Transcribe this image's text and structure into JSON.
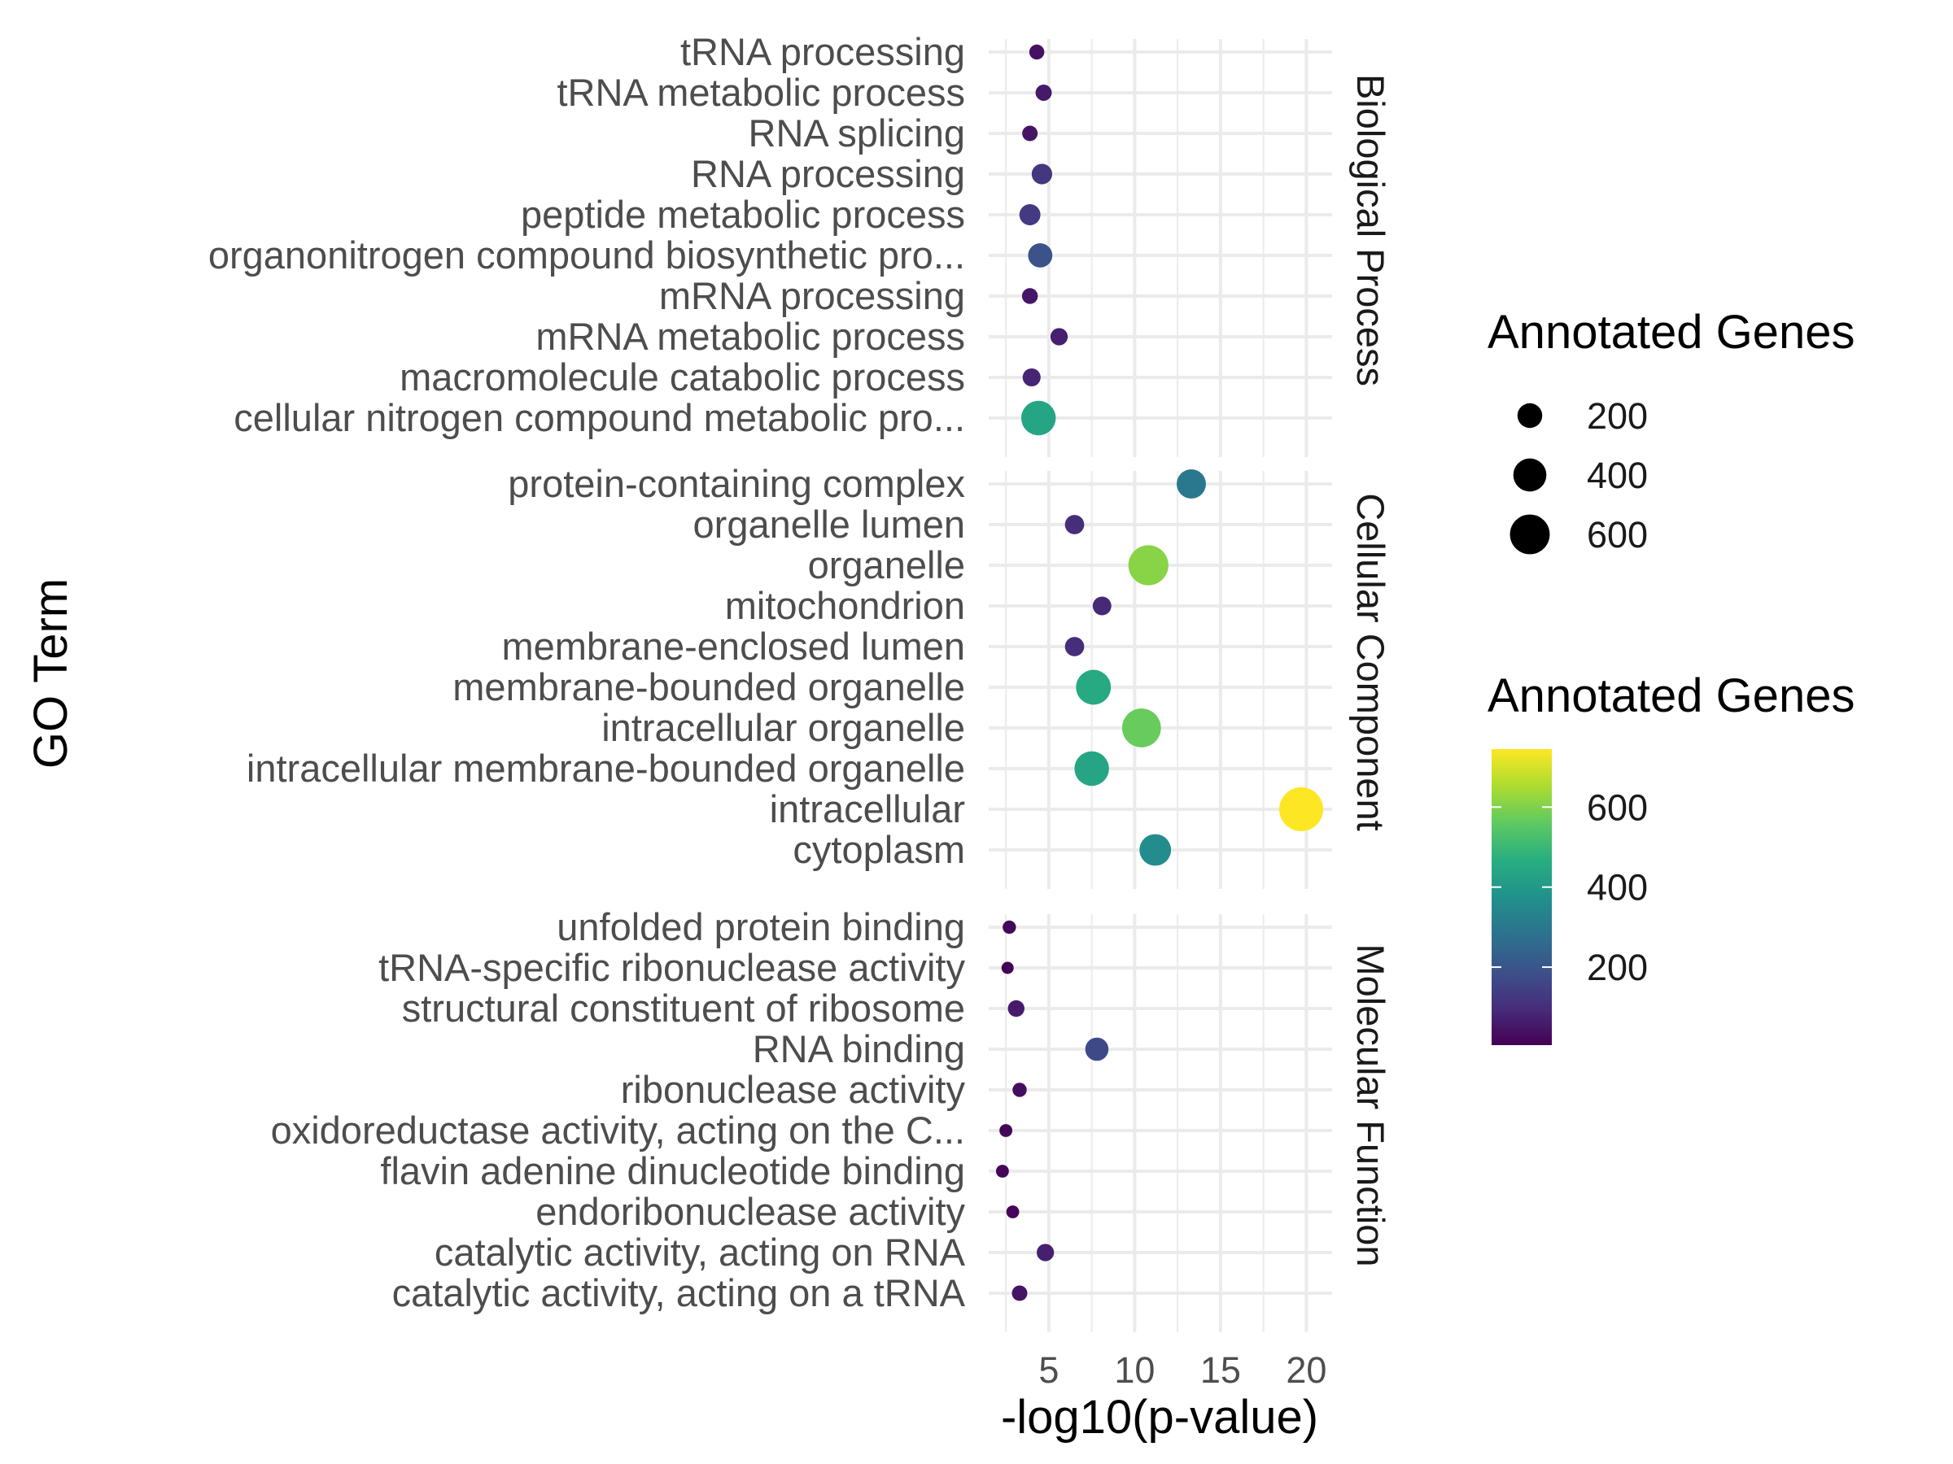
{
  "chart_data": {
    "type": "scatter",
    "xlabel": "-log10(p-value)",
    "ylabel": "GO Term",
    "xlim": [
      1.5,
      21.5
    ],
    "x_ticks": [
      "5",
      "10",
      "15",
      "20"
    ],
    "x_tick_values": [
      5,
      10,
      15,
      20
    ],
    "grid": true,
    "size_legend": {
      "title": "Annotated Genes",
      "placement": "right",
      "values": [
        200,
        400,
        600
      ],
      "labels": [
        "200",
        "400",
        "600"
      ]
    },
    "color_legend": {
      "title": "Annotated Genes",
      "placement": "right",
      "colormap": "viridis",
      "range": [
        5,
        745
      ],
      "ticks": [
        200,
        400,
        600
      ],
      "labels": [
        "200",
        "400",
        "600"
      ]
    },
    "facets": [
      {
        "name": "Biological Process",
        "terms": [
          {
            "term": "tRNA processing",
            "x": 4.3,
            "annotated": 40
          },
          {
            "term": "tRNA metabolic process",
            "x": 4.7,
            "annotated": 55
          },
          {
            "term": "RNA splicing",
            "x": 3.9,
            "annotated": 45
          },
          {
            "term": "RNA processing",
            "x": 4.6,
            "annotated": 120
          },
          {
            "term": "peptide metabolic process",
            "x": 3.9,
            "annotated": 130
          },
          {
            "term": "organonitrogen compound biosynthetic pro...",
            "x": 4.5,
            "annotated": 190
          },
          {
            "term": "mRNA processing",
            "x": 3.9,
            "annotated": 50
          },
          {
            "term": "mRNA metabolic process",
            "x": 5.6,
            "annotated": 70
          },
          {
            "term": "macromolecule catabolic process",
            "x": 4.0,
            "annotated": 80
          },
          {
            "term": "cellular nitrogen compound metabolic pro...",
            "x": 4.4,
            "annotated": 440
          }
        ]
      },
      {
        "name": "Cellular Component",
        "terms": [
          {
            "term": "protein-containing complex",
            "x": 13.3,
            "annotated": 300
          },
          {
            "term": "organelle lumen",
            "x": 6.5,
            "annotated": 100
          },
          {
            "term": "organelle",
            "x": 10.8,
            "annotated": 610
          },
          {
            "term": "mitochondrion",
            "x": 8.1,
            "annotated": 90
          },
          {
            "term": "membrane-enclosed lumen",
            "x": 6.5,
            "annotated": 100
          },
          {
            "term": "membrane-bounded organelle",
            "x": 7.6,
            "annotated": 450
          },
          {
            "term": "intracellular organelle",
            "x": 10.4,
            "annotated": 570
          },
          {
            "term": "intracellular membrane-bounded organelle",
            "x": 7.5,
            "annotated": 440
          },
          {
            "term": "intracellular",
            "x": 19.7,
            "annotated": 745
          },
          {
            "term": "cytoplasm",
            "x": 11.2,
            "annotated": 360
          }
        ]
      },
      {
        "name": "Molecular Function",
        "terms": [
          {
            "term": "unfolded protein binding",
            "x": 2.7,
            "annotated": 20
          },
          {
            "term": "tRNA-specific ribonuclease activity",
            "x": 2.6,
            "annotated": 8
          },
          {
            "term": "structural constituent of ribosome",
            "x": 3.1,
            "annotated": 60
          },
          {
            "term": "RNA binding",
            "x": 7.8,
            "annotated": 170
          },
          {
            "term": "ribonuclease activity",
            "x": 3.3,
            "annotated": 30
          },
          {
            "term": "oxidoreductase activity, acting on the C...",
            "x": 2.5,
            "annotated": 15
          },
          {
            "term": "flavin adenine dinucleotide binding",
            "x": 2.3,
            "annotated": 15
          },
          {
            "term": "endoribonuclease activity",
            "x": 2.9,
            "annotated": 15
          },
          {
            "term": "catalytic activity, acting on RNA",
            "x": 4.8,
            "annotated": 70
          },
          {
            "term": "catalytic activity, acting on a tRNA",
            "x": 3.3,
            "annotated": 45
          }
        ]
      }
    ]
  }
}
